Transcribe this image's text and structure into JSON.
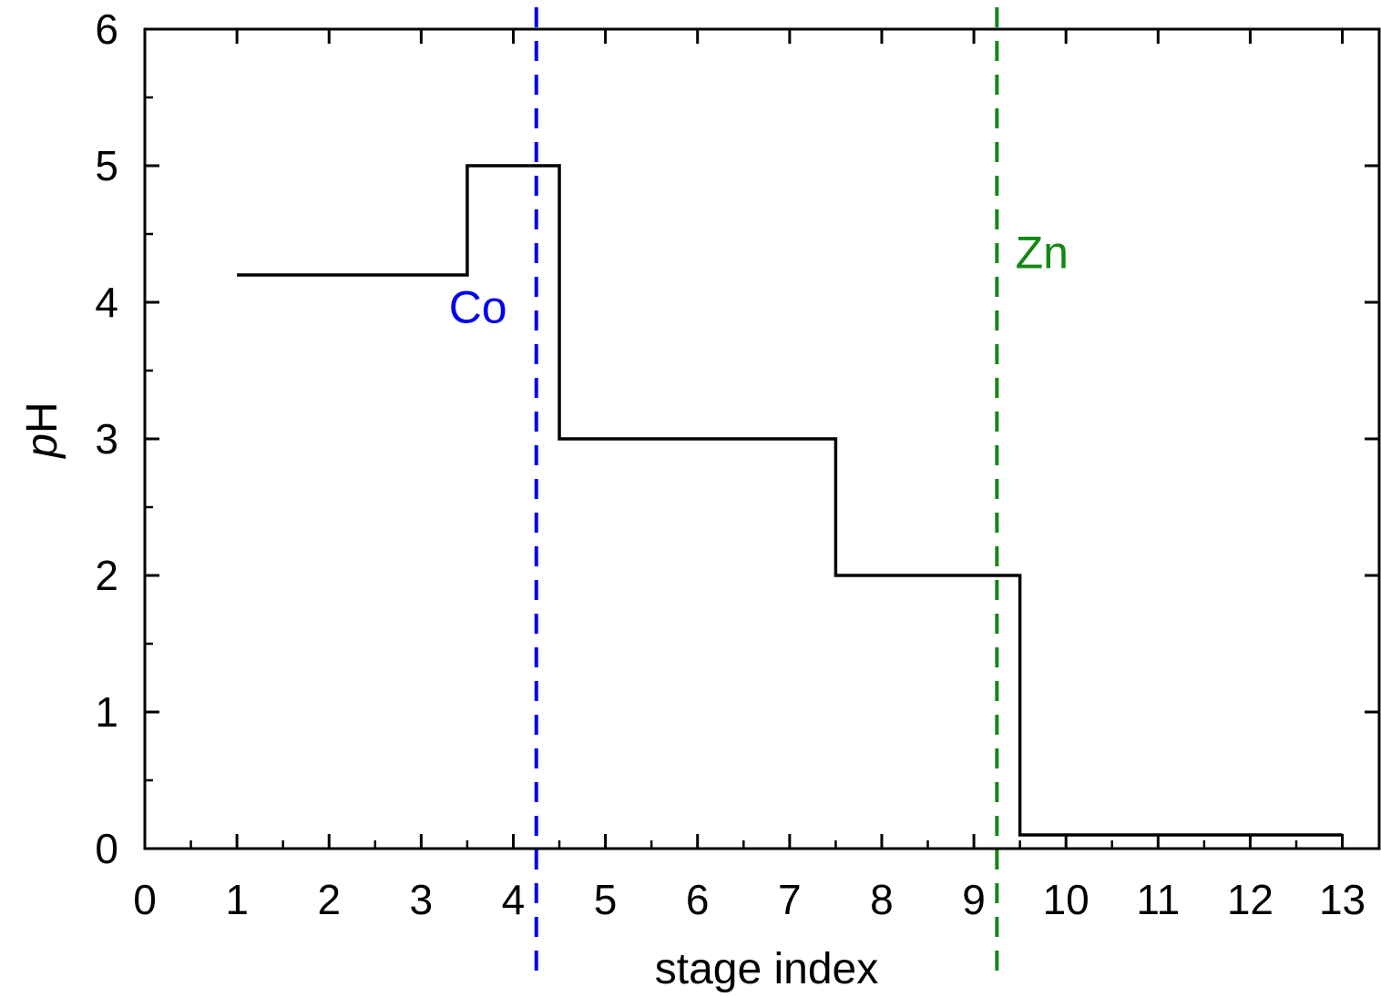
{
  "chart_data": {
    "type": "line",
    "xlabel": "stage index",
    "ylabel_italic": "p",
    "ylabel_rest": "H",
    "xlim": [
      0,
      13.4
    ],
    "ylim": [
      0,
      6
    ],
    "xticks": [
      0,
      1,
      2,
      3,
      4,
      5,
      6,
      7,
      8,
      9,
      10,
      11,
      12,
      13
    ],
    "yticks": [
      0,
      1,
      2,
      3,
      4,
      5,
      6
    ],
    "minor_x_step": 0.5,
    "minor_y_step": 0.5,
    "grid": false,
    "legend": "none",
    "series": [
      {
        "style": "step",
        "color": "#000000",
        "x": [
          1,
          2,
          3,
          4,
          5,
          6,
          7,
          8,
          9,
          10,
          11,
          12,
          13
        ],
        "y": [
          4.2,
          4.2,
          4.2,
          5.0,
          3.0,
          3.0,
          3.0,
          2.0,
          2.0,
          0.1,
          0.1,
          0.1,
          0.1
        ]
      }
    ],
    "reference_lines": [
      {
        "x": 4.25,
        "color": "#0000ee",
        "label": "Co",
        "label_x": 3.3,
        "label_y": 3.85
      },
      {
        "x": 9.25,
        "color": "#118811",
        "label": "Zn",
        "label_x": 9.45,
        "label_y": 4.25
      }
    ]
  }
}
